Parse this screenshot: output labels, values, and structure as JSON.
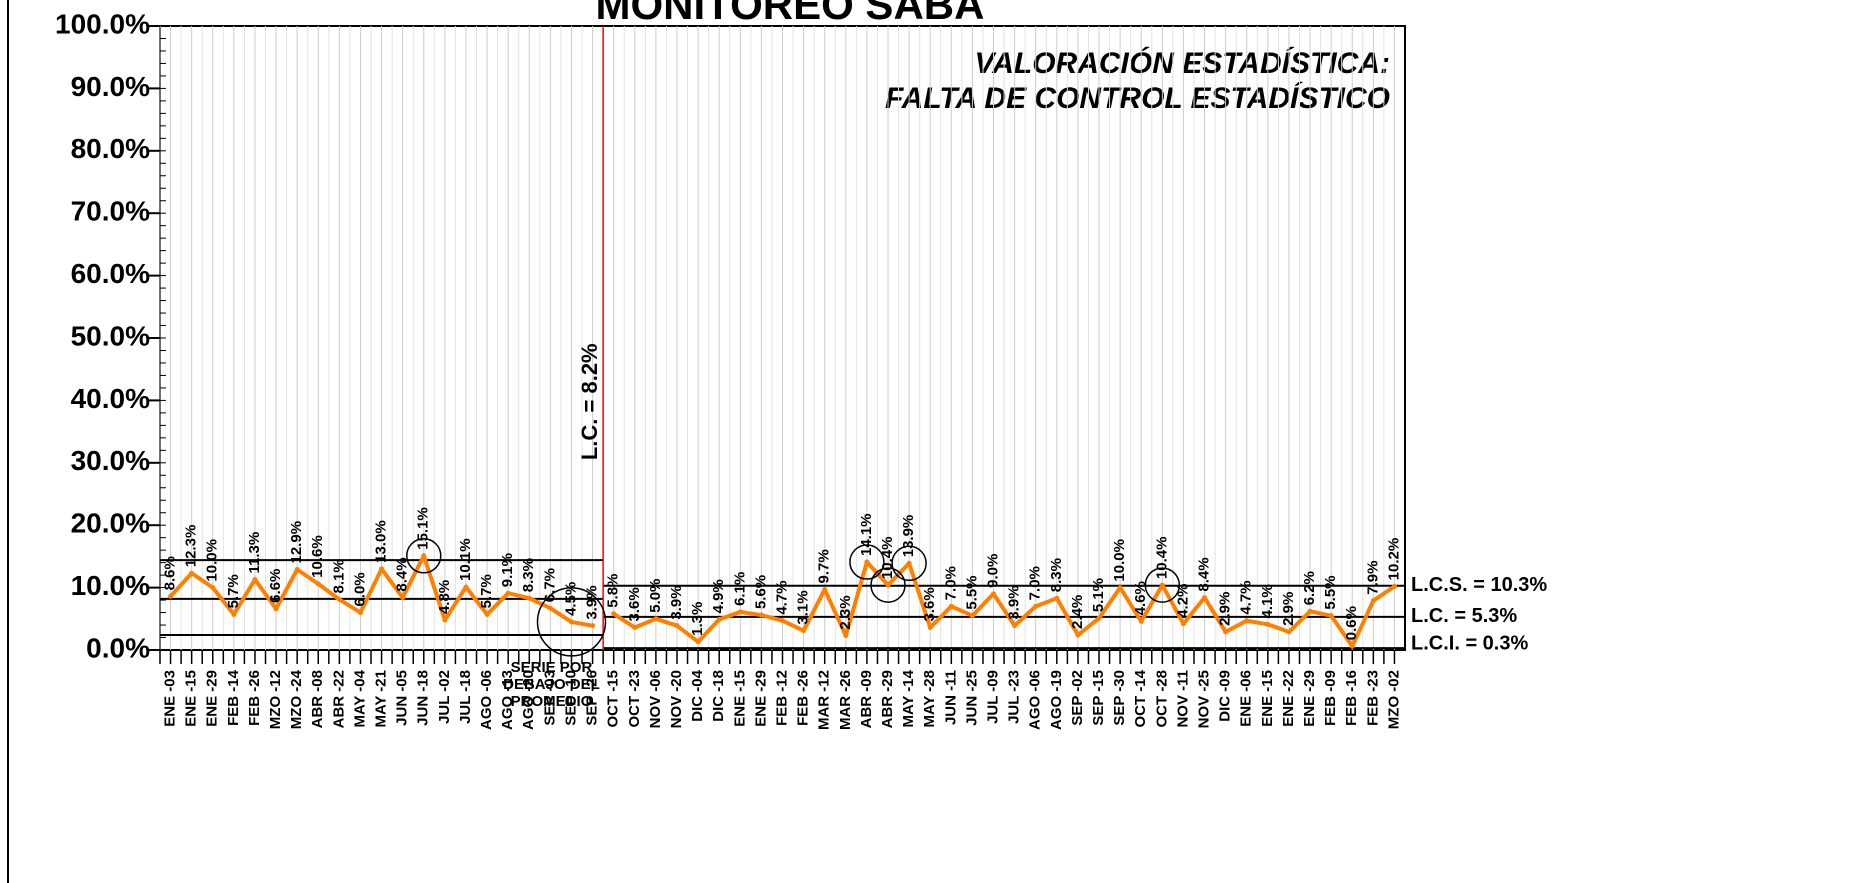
{
  "chart_data": {
    "type": "control",
    "title": "MONITOREO SABA",
    "annotation_title": "VALORACIÓN ESTADÍSTICA:",
    "annotation_subtitle": "FALTA DE CONTROL ESTADÍSTICO",
    "note": "SERIE POR DEBAJO DEL PROMEDIO",
    "color": "#ff8000",
    "limit_color": "#000000",
    "divider_color": "#ff0000",
    "grid": true,
    "ylim": [
      0,
      100
    ],
    "yticks": [
      {
        "value": 0,
        "label": "0.0%"
      },
      {
        "value": 10,
        "label": "10.0%"
      },
      {
        "value": 20,
        "label": "20.0%"
      },
      {
        "value": 30,
        "label": "30.0%"
      },
      {
        "value": 40,
        "label": "40.0%"
      },
      {
        "value": 50,
        "label": "50.0%"
      },
      {
        "value": 60,
        "label": "60.0%"
      },
      {
        "value": 70,
        "label": "70.0%"
      },
      {
        "value": 80,
        "label": "80.0%"
      },
      {
        "value": 90,
        "label": "90.0%"
      },
      {
        "value": 100,
        "label": "100.0%"
      }
    ],
    "categories": [
      "ENE -03",
      "ENE -15",
      "ENE -29",
      "FEB -14",
      "FEB -26",
      "MZO -12",
      "MZO -24",
      "ABR -08",
      "ABR -22",
      "MAY -04",
      "MAY -21",
      "JUN -05",
      "JUN -18",
      "JUL -02",
      "JUL -18",
      "AGO -06",
      "AGO -13",
      "AGO -20",
      "SEP -03",
      "SEP -10",
      "SEP -26",
      "OCT -15",
      "OCT -23",
      "NOV -06",
      "NOV -20",
      "DIC -04",
      "DIC -18",
      "ENE -15",
      "ENE -29",
      "FEB -12",
      "FEB -26",
      "MAR -12",
      "MAR -26",
      "ABR -09",
      "ABR -29",
      "MAY -14",
      "MAY -28",
      "JUN -11",
      "JUN -25",
      "JUL -09",
      "JUL -23",
      "AGO -06",
      "AGO -19",
      "SEP -02",
      "SEP -15",
      "SEP -30",
      "OCT -14",
      "OCT -28",
      "NOV -11",
      "NOV -25",
      "DIC -09",
      "ENE -06",
      "ENE -15",
      "ENE -22",
      "ENE -29",
      "FEB -09",
      "FEB -16",
      "FEB -23",
      "MZO -02"
    ],
    "phases": [
      {
        "values": [
          8.6,
          12.3,
          10.0,
          5.7,
          11.3,
          6.6,
          12.9,
          10.6,
          8.1,
          6.0,
          13.0,
          8.4,
          15.1,
          4.8,
          10.1,
          5.7,
          9.1,
          8.3,
          6.7,
          4.5,
          3.9
        ],
        "value_labels": [
          "8.6%",
          "12.3%",
          "10.0%",
          "5.7%",
          "11.3%",
          "6.6%",
          "12.9%",
          "10.6%",
          "8.1%",
          "6.0%",
          "13.0%",
          "8.4%",
          "15.1%",
          "4.8%",
          "10.1%",
          "5.7%",
          "9.1%",
          "8.3%",
          "6.7%",
          "4.5%",
          "3.9%"
        ],
        "ucl": 14.4,
        "cl": 8.2,
        "lcl": 2.4,
        "limit_labels": {
          "cl": "L.C. = 8.2%"
        }
      },
      {
        "values": [
          5.8,
          3.6,
          5.0,
          3.9,
          1.3,
          4.9,
          6.1,
          5.6,
          4.7,
          3.1,
          9.7,
          2.3,
          14.1,
          10.4,
          13.9,
          3.6,
          7.0,
          5.5,
          9.0,
          3.9,
          7.0,
          8.3,
          2.4,
          5.1,
          10.0,
          4.6,
          10.4,
          4.2,
          8.4,
          2.9,
          4.7,
          4.1,
          2.9,
          6.2,
          5.5,
          0.6,
          7.9,
          10.2
        ],
        "value_labels": [
          "5.8%",
          "3.6%",
          "5.0%",
          "3.9%",
          "1.3%",
          "4.9%",
          "6.1%",
          "5.6%",
          "4.7%",
          "3.1%",
          "9.7%",
          "2.3%",
          "14.1%",
          "10.4%",
          "13.9%",
          "3.6%",
          "7.0%",
          "5.5%",
          "9.0%",
          "3.9%",
          "7.0%",
          "8.3%",
          "2.4%",
          "5.1%",
          "10.0%",
          "4.6%",
          "10.4%",
          "4.2%",
          "8.4%",
          "2.9%",
          "4.7%",
          "4.1%",
          "2.9%",
          "6.2%",
          "5.5%",
          "0.6%",
          "7.9%",
          "10.2%"
        ],
        "ucl": 10.3,
        "cl": 5.3,
        "lcl": 0.3,
        "limit_labels": {
          "ucl": "L.C.S. = 10.3%",
          "cl": "L.C. = 5.3%",
          "lcl": "L.C.I. = 0.3%"
        }
      }
    ]
  }
}
